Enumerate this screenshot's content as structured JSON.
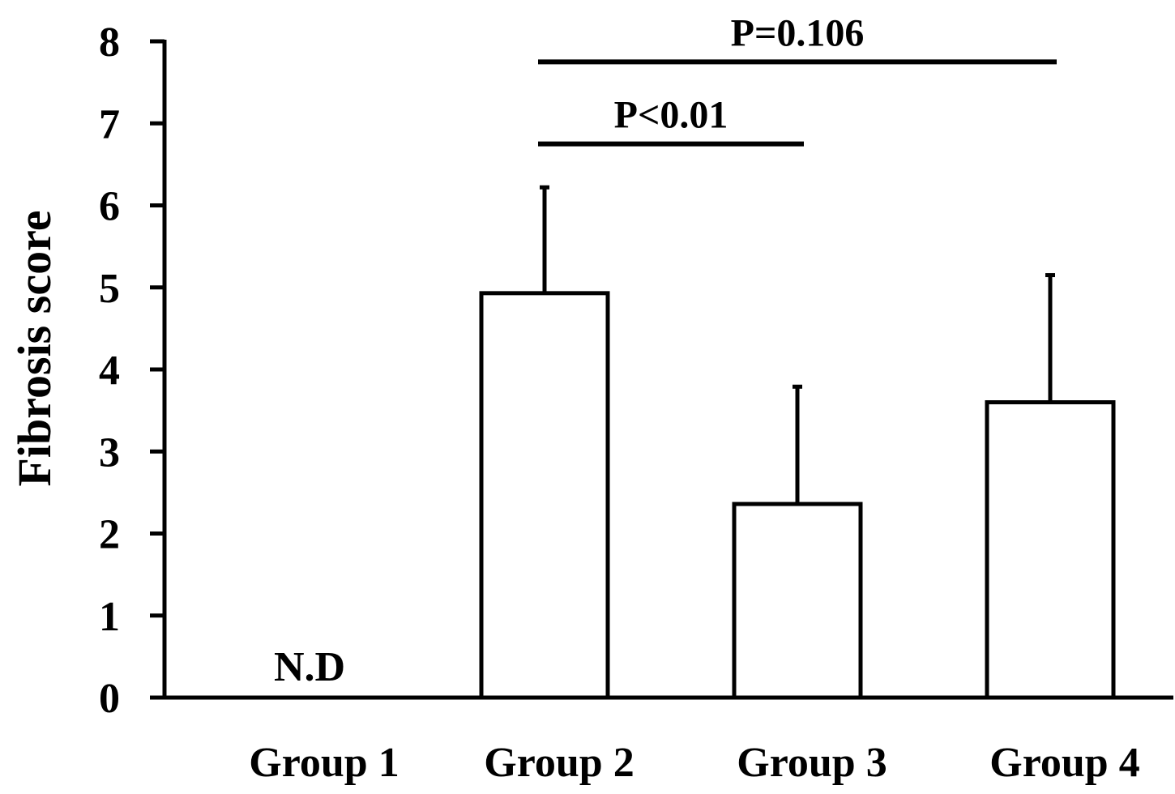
{
  "chart_data": {
    "type": "bar",
    "title": "",
    "xlabel": "",
    "ylabel": "Fibrosis score",
    "ylim": [
      0,
      8
    ],
    "yticks": [
      0,
      1,
      2,
      3,
      4,
      5,
      6,
      7,
      8
    ],
    "categories": [
      "Group 1",
      "Group 2",
      "Group 3",
      "Group 4"
    ],
    "values": [
      null,
      4.93,
      2.36,
      3.6
    ],
    "error_upper": [
      null,
      6.22,
      3.79,
      5.15
    ],
    "bar_labels": [
      "N.D",
      "",
      "",
      ""
    ],
    "grid": false,
    "legend": "none",
    "bar_fill": "#ffffff",
    "bar_stroke": "#000000",
    "annotations": [
      {
        "text": "P<0.01",
        "from": "Group 2",
        "to": "Group 3",
        "y": 6.75
      },
      {
        "text": "P=0.106",
        "from": "Group 2",
        "to": "Group 4",
        "y": 7.75
      }
    ]
  }
}
